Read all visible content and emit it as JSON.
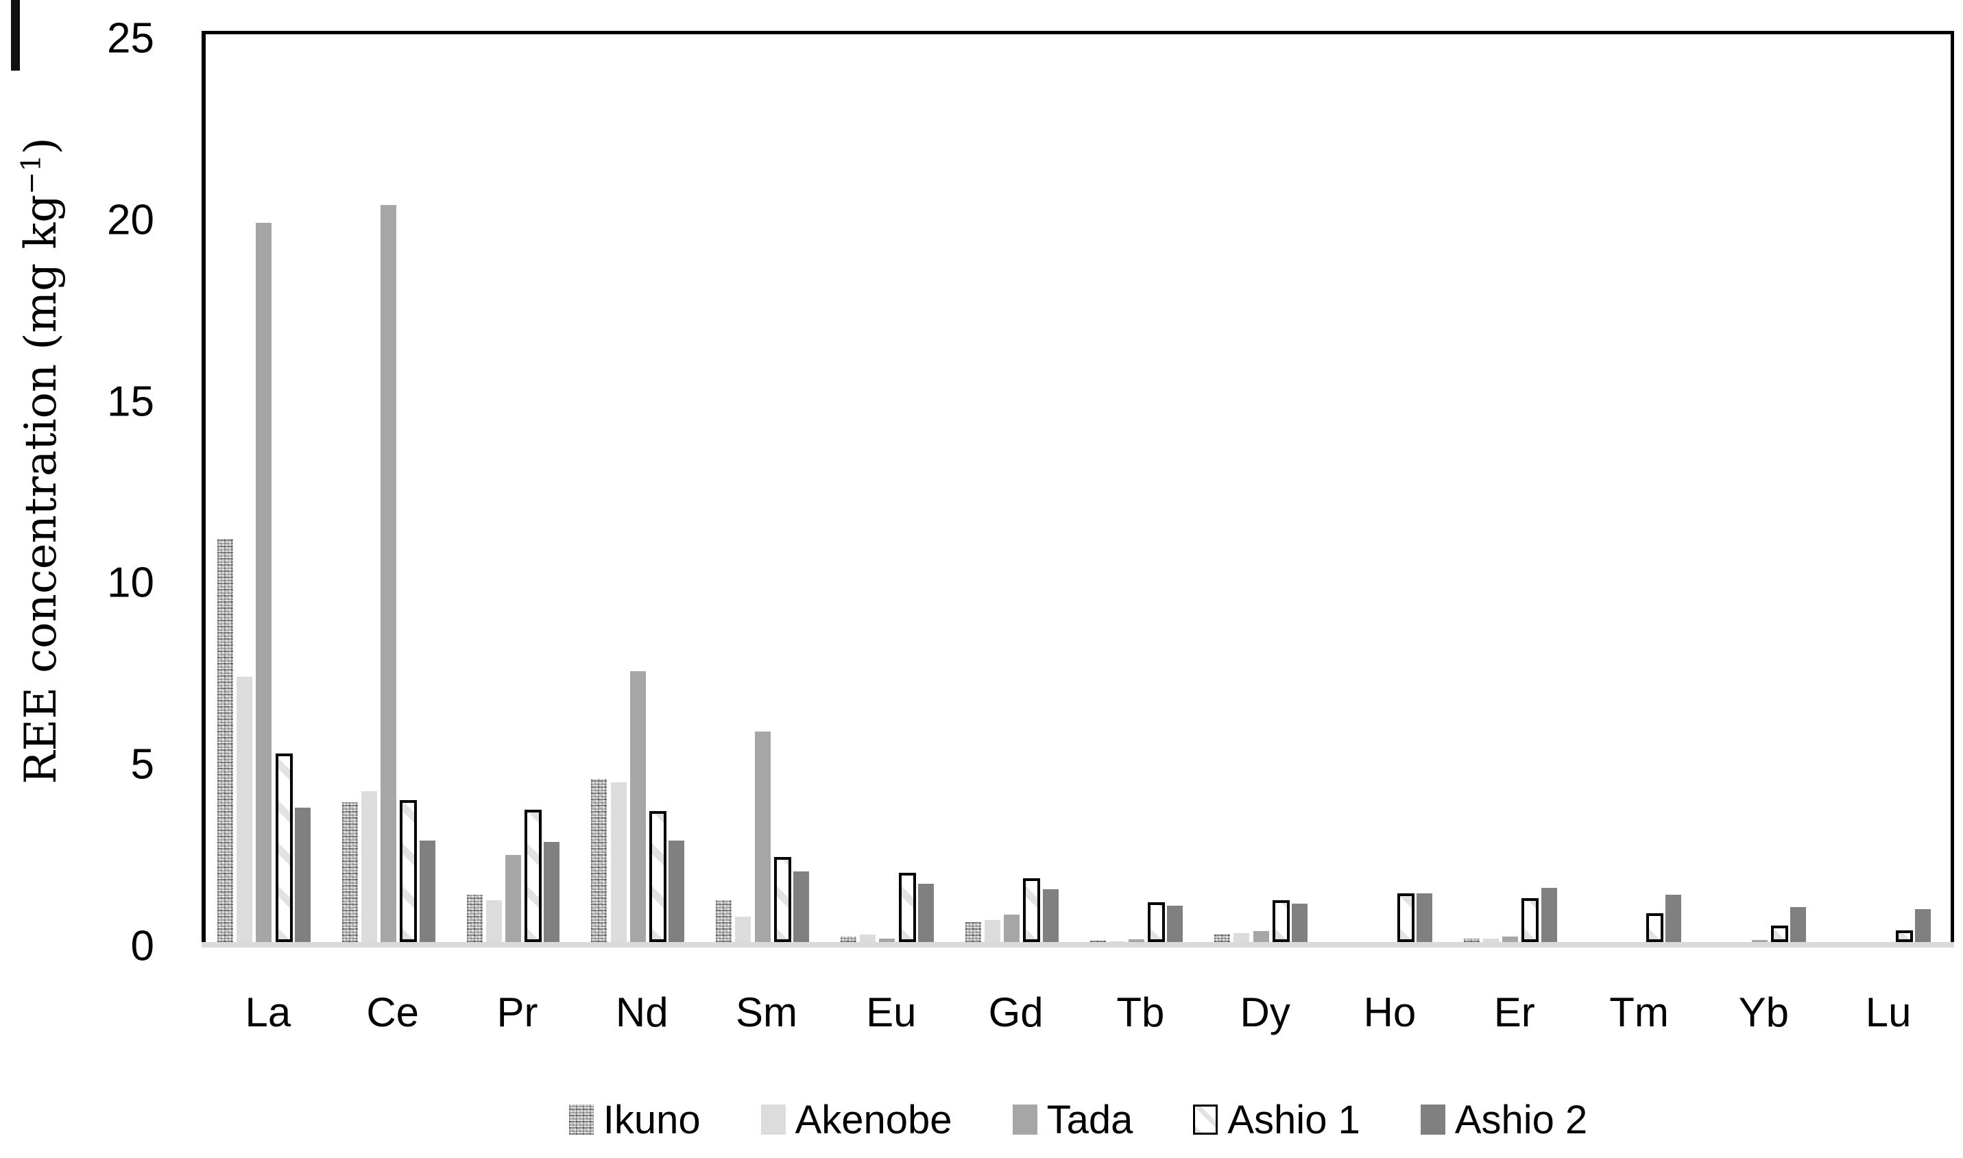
{
  "chart_data": {
    "type": "bar",
    "title": "",
    "xlabel": "",
    "ylabel": "REE concentration (mg kg⁻¹)",
    "ylabel_parts": {
      "prefix": "REE concentration (mg kg",
      "superscript": "−1",
      "suffix": ")"
    },
    "ylim": [
      0,
      25
    ],
    "yticks": [
      0,
      5,
      10,
      15,
      20,
      25
    ],
    "grid": false,
    "legend_position": "bottom",
    "categories": [
      "La",
      "Ce",
      "Pr",
      "Nd",
      "Sm",
      "Eu",
      "Gd",
      "Tb",
      "Dy",
      "Ho",
      "Er",
      "Tm",
      "Yb",
      "Lu"
    ],
    "series": [
      {
        "name": "Ikuno",
        "pattern": "speckled",
        "color": "#cbcbcb",
        "values": [
          11.1,
          3.85,
          1.3,
          4.5,
          1.15,
          0.15,
          0.55,
          0.03,
          0.2,
          0.0,
          0.1,
          0.0,
          0.0,
          0.0
        ]
      },
      {
        "name": "Akenobe",
        "pattern": "solid",
        "color": "#dcdcdc",
        "values": [
          7.3,
          4.15,
          1.15,
          4.4,
          0.7,
          0.2,
          0.6,
          0.02,
          0.25,
          0.0,
          0.1,
          0.0,
          0.0,
          0.0
        ]
      },
      {
        "name": "Tada",
        "pattern": "solid",
        "color": "#a6a6a6",
        "values": [
          19.8,
          20.3,
          2.4,
          7.45,
          5.8,
          0.1,
          0.75,
          0.08,
          0.3,
          0.0,
          0.15,
          0.0,
          0.06,
          0.0
        ]
      },
      {
        "name": "Ashio 1",
        "pattern": "hatched",
        "color": "#ffffff",
        "values": [
          5.2,
          3.9,
          3.65,
          3.6,
          2.35,
          1.9,
          1.75,
          1.1,
          1.15,
          1.35,
          1.2,
          0.8,
          0.45,
          0.32
        ]
      },
      {
        "name": "Ashio 2",
        "pattern": "solid",
        "color": "#808080",
        "values": [
          3.7,
          2.8,
          2.75,
          2.8,
          1.95,
          1.6,
          1.45,
          1.0,
          1.05,
          1.35,
          1.5,
          1.3,
          0.97,
          0.9
        ]
      }
    ]
  },
  "colors": {
    "axis_line": "#000000",
    "baseline": "#d9d9d9",
    "background": "#ffffff",
    "text": "#000000"
  }
}
